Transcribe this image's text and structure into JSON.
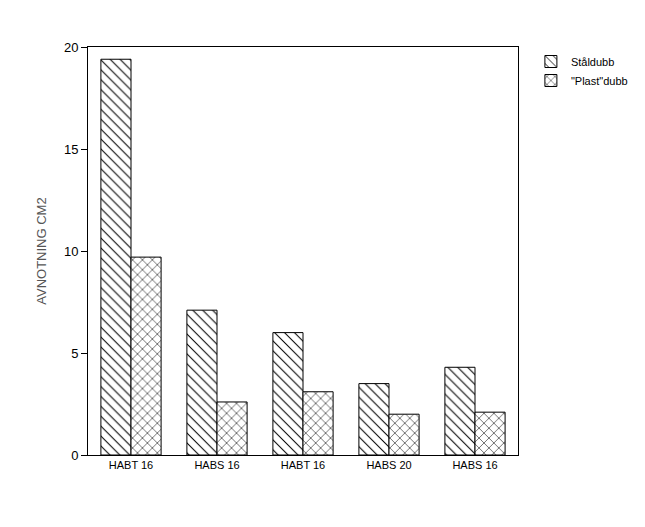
{
  "chart_data": {
    "type": "bar",
    "y_label": "AVNOTNING CM2",
    "categories": [
      "HABT 16",
      "HABS 16",
      "HABT 16",
      "HABS 20",
      "HABS 16"
    ],
    "series": [
      {
        "name": "Ståldubb",
        "color": "#000000",
        "marker": "hatch",
        "values": [
          19.4,
          7.1,
          6.0,
          3.5,
          4.3
        ]
      },
      {
        "name": "\"Plast\"dubb",
        "color": "#000000",
        "marker": "crosshatch",
        "values": [
          9.7,
          2.6,
          3.1,
          2.0,
          2.1
        ]
      }
    ],
    "ylim": [
      0,
      20
    ],
    "yticks": [
      0,
      5,
      10,
      15,
      20
    ],
    "grid": false,
    "legend": "right"
  }
}
